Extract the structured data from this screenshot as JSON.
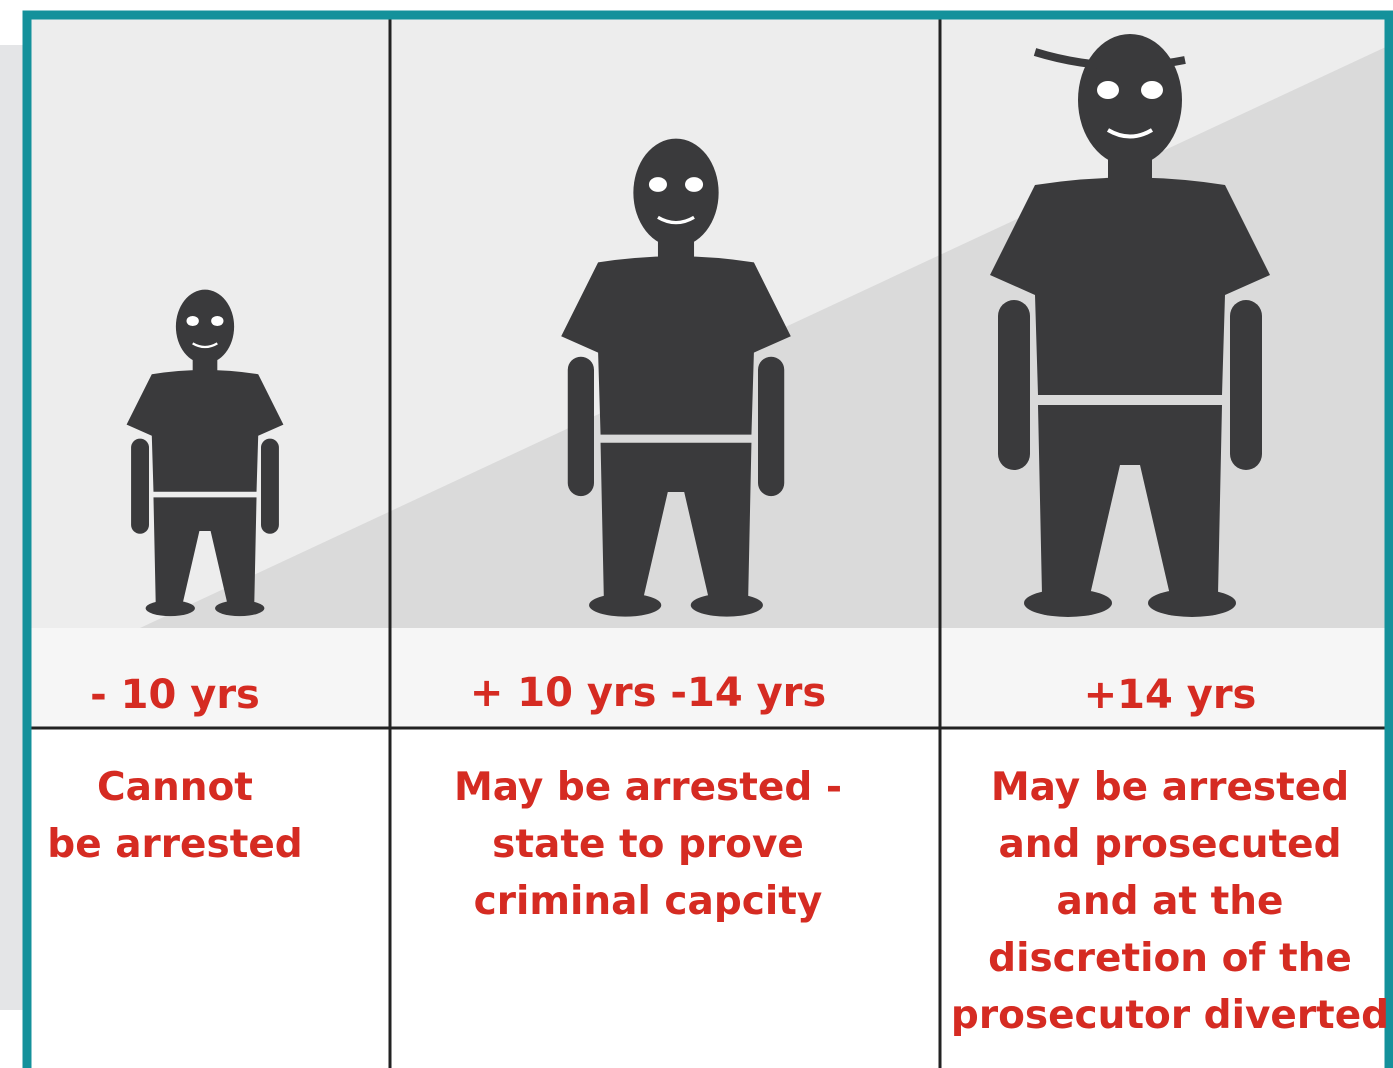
{
  "columns": [
    {
      "age": "- 10 yrs",
      "description": [
        "Cannot",
        "be arrested"
      ]
    },
    {
      "age": "+ 10 yrs  -14 yrs",
      "description": [
        "May be arrested -",
        "state to prove",
        "criminal capcity"
      ]
    },
    {
      "age": "+14 yrs",
      "description": [
        "May be arrested",
        "and prosecuted",
        "and at the",
        "discretion of the",
        "prosecutor diverted"
      ]
    }
  ]
}
